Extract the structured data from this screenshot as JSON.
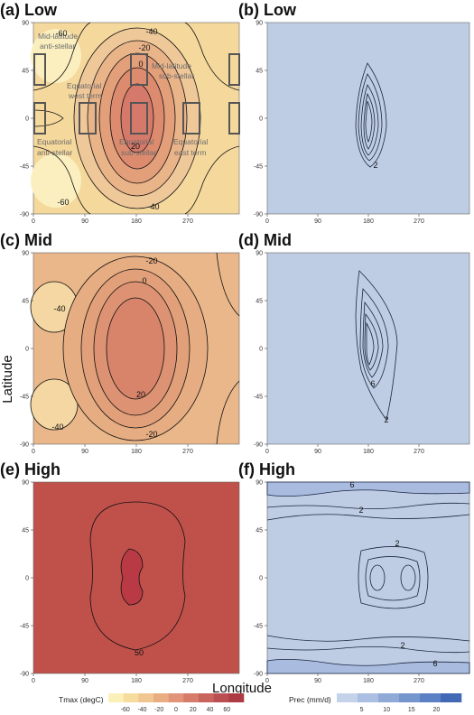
{
  "figure": {
    "xlabel": "Longitude",
    "ylabel": "Latitude"
  },
  "chart_data": [
    {
      "panel": "a",
      "title": "(a) Low",
      "type": "heatmap",
      "field": "Tmax",
      "xticks": [
        "0",
        "90",
        "180",
        "270"
      ],
      "yticks": [
        "90",
        "45",
        "0",
        "-45",
        "-90"
      ],
      "xlim": [
        0,
        360
      ],
      "ylim": [
        -90,
        90
      ],
      "fill": "#f5d89c",
      "contour_labels": [
        "-60",
        "-40",
        "-20",
        "0",
        "20",
        "-40",
        "-60"
      ],
      "annotations": [
        "Mid-latitude anti-stellar",
        "Mid-latitude sub-stellar",
        "Equatorial west term",
        "Equatorial anti-stellar",
        "Equatorial sub-stellar",
        "Equatorial east term"
      ]
    },
    {
      "panel": "b",
      "title": "(b) Low",
      "type": "heatmap",
      "field": "Prec",
      "xticks": [
        "0",
        "90",
        "180",
        "270"
      ],
      "yticks": [
        "90",
        "45",
        "0",
        "-45",
        "-90"
      ],
      "xlim": [
        0,
        360
      ],
      "ylim": [
        -90,
        90
      ],
      "fill": "#bfcde4",
      "contour_labels": [
        "2"
      ]
    },
    {
      "panel": "c",
      "title": "(c) Mid",
      "type": "heatmap",
      "field": "Tmax",
      "xticks": [
        "0",
        "90",
        "180",
        "270"
      ],
      "yticks": [
        "90",
        "45",
        "0",
        "-45",
        "-90"
      ],
      "xlim": [
        0,
        360
      ],
      "ylim": [
        -90,
        90
      ],
      "fill": "#e9b78a",
      "contour_labels": [
        "-20",
        "0",
        "-40",
        "20",
        "-40",
        "-20"
      ]
    },
    {
      "panel": "d",
      "title": "(d) Mid",
      "type": "heatmap",
      "field": "Prec",
      "xticks": [
        "0",
        "90",
        "180",
        "270"
      ],
      "yticks": [
        "90",
        "45",
        "0",
        "-45",
        "-90"
      ],
      "xlim": [
        0,
        360
      ],
      "ylim": [
        -90,
        90
      ],
      "fill": "#bfcde4",
      "contour_labels": [
        "6",
        "2"
      ]
    },
    {
      "panel": "e",
      "title": "(e) High",
      "type": "heatmap",
      "field": "Tmax",
      "xticks": [
        "0",
        "90",
        "180",
        "270"
      ],
      "yticks": [
        "90",
        "45",
        "0",
        "-45",
        "-90"
      ],
      "xlim": [
        0,
        360
      ],
      "ylim": [
        -90,
        90
      ],
      "fill": "#c0504a",
      "contour_labels": [
        "50"
      ]
    },
    {
      "panel": "f",
      "title": "(f) High",
      "type": "heatmap",
      "field": "Prec",
      "xticks": [
        "0",
        "90",
        "180",
        "270"
      ],
      "yticks": [
        "90",
        "45",
        "0",
        "-45",
        "-90"
      ],
      "xlim": [
        0,
        360
      ],
      "ylim": [
        -90,
        90
      ],
      "fill": "#bfcde4",
      "contour_labels": [
        "6",
        "2",
        "2",
        "2",
        "6"
      ]
    }
  ],
  "colorbars": [
    {
      "title": "Tmax (degC)",
      "ticks": [
        "-60",
        "-40",
        "-20",
        "0",
        "20",
        "40",
        "60"
      ],
      "colors": [
        "#fbf0b8",
        "#f6dd9d",
        "#f0c691",
        "#eaad83",
        "#e29478",
        "#d77b6a",
        "#c9645d",
        "#bb4e50",
        "#ad3b45"
      ]
    },
    {
      "title": "Prec (mm/d)",
      "ticks": [
        "5",
        "10",
        "15",
        "20"
      ],
      "colors": [
        "#c5d3ea",
        "#aabfe1",
        "#90aad7",
        "#7595cd",
        "#5b80c3",
        "#4169b5"
      ]
    }
  ]
}
